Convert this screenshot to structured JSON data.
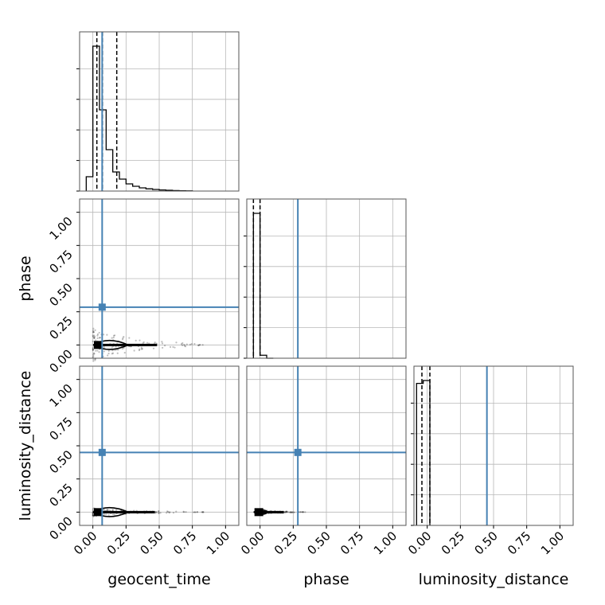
{
  "chart_data": {
    "type": "corner",
    "parameters": [
      "geocent_time",
      "phase",
      "luminosity_distance"
    ],
    "tick_values": [
      0.0,
      0.25,
      0.5,
      0.75,
      1.0
    ],
    "tick_labels": [
      "0.00",
      "0.25",
      "0.50",
      "0.75",
      "1.00"
    ],
    "xlim": [
      -0.1,
      1.1
    ],
    "ylim": [
      -0.1,
      1.1
    ],
    "grid": true,
    "truth_color": "#4682b4",
    "truths": {
      "geocent_time": 0.07,
      "phase": 0.285,
      "luminosity_distance": 0.45
    },
    "histograms": {
      "geocent_time": {
        "bin_edges": [
          -0.05,
          0.0,
          0.05,
          0.1,
          0.15,
          0.2,
          0.25,
          0.3,
          0.35,
          0.4,
          0.45,
          0.5,
          0.55,
          0.6,
          0.65,
          0.7,
          0.75
        ],
        "counts": [
          0.09,
          0.91,
          0.51,
          0.26,
          0.12,
          0.075,
          0.045,
          0.03,
          0.02,
          0.014,
          0.01,
          0.007,
          0.005,
          0.003,
          0.002,
          0.001
        ],
        "quantiles": [
          0.03,
          0.072,
          0.18
        ]
      },
      "phase": {
        "bin_edges": [
          -0.05,
          0.0,
          0.05,
          0.1
        ],
        "counts": [
          0.97,
          0.02,
          0.0
        ],
        "quantiles": [
          -0.05,
          0.0
        ]
      },
      "luminosity_distance": {
        "bin_edges": [
          -0.08,
          -0.03,
          0.02
        ],
        "counts": [
          0.98,
          1.0
        ],
        "quantiles": [
          -0.04,
          0.02
        ]
      }
    },
    "scatter_panels": [
      {
        "x": "geocent_time",
        "y": "phase",
        "center": [
          0.05,
          0.0
        ],
        "x_extent": [
          0.0,
          0.88
        ],
        "y_extent": [
          -0.03,
          0.2
        ]
      },
      {
        "x": "geocent_time",
        "y": "luminosity_distance",
        "center": [
          0.05,
          0.0
        ],
        "x_extent": [
          0.0,
          0.85
        ],
        "y_extent": [
          -0.03,
          0.03
        ]
      },
      {
        "x": "phase",
        "y": "luminosity_distance",
        "center": [
          0.0,
          0.0
        ],
        "x_extent": [
          -0.03,
          0.35
        ],
        "y_extent": [
          -0.02,
          0.02
        ]
      }
    ]
  }
}
